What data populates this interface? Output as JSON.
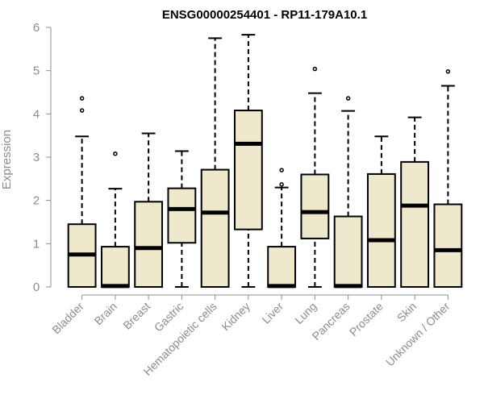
{
  "chart_data": {
    "type": "boxplot",
    "title": "ENSG00000254401 - RP11-179A10.1",
    "xlabel": "",
    "ylabel": "Expression",
    "ylim": [
      0,
      6
    ],
    "yticks": [
      "0",
      "1",
      "2",
      "3",
      "4",
      "5",
      "6"
    ],
    "colors": {
      "box_fill": "#EEE8CC",
      "stroke": "#000000",
      "axis_text": "#8c8c8c"
    },
    "categories": [
      "Bladder",
      "Brain",
      "Breast",
      "Gastric",
      "Hematopoietic cells",
      "Kidney",
      "Liver",
      "Lung",
      "Pancreas",
      "Prostate",
      "Skin",
      "Unknown / Other"
    ],
    "boxes": [
      {
        "category": "Bladder",
        "min": 0,
        "q1": 0,
        "median": 0.75,
        "q3": 1.45,
        "max": 3.48,
        "outliers": [
          4.08,
          4.36
        ]
      },
      {
        "category": "Brain",
        "min": 0,
        "q1": 0,
        "median": 0.02,
        "q3": 0.93,
        "max": 2.27,
        "outliers": [
          3.08
        ]
      },
      {
        "category": "Breast",
        "min": 0,
        "q1": 0,
        "median": 0.9,
        "q3": 1.97,
        "max": 3.55,
        "outliers": []
      },
      {
        "category": "Gastric",
        "min": 0,
        "q1": 1.02,
        "median": 1.8,
        "q3": 2.28,
        "max": 3.14,
        "outliers": []
      },
      {
        "category": "Hematopoietic cells",
        "min": 0,
        "q1": 0,
        "median": 1.72,
        "q3": 2.71,
        "max": 5.75,
        "outliers": []
      },
      {
        "category": "Kidney",
        "min": 0,
        "q1": 1.33,
        "median": 3.31,
        "q3": 4.08,
        "max": 5.83,
        "outliers": []
      },
      {
        "category": "Liver",
        "min": 0,
        "q1": 0,
        "median": 0.02,
        "q3": 0.93,
        "max": 2.3,
        "outliers": [
          2.37,
          2.7
        ]
      },
      {
        "category": "Lung",
        "min": 0,
        "q1": 1.12,
        "median": 1.73,
        "q3": 2.6,
        "max": 4.48,
        "outliers": [
          5.04
        ]
      },
      {
        "category": "Pancreas",
        "min": 0,
        "q1": 0,
        "median": 0.02,
        "q3": 1.63,
        "max": 4.07,
        "outliers": [
          4.36
        ]
      },
      {
        "category": "Prostate",
        "min": 0,
        "q1": 0,
        "median": 1.08,
        "q3": 2.61,
        "max": 3.48,
        "outliers": []
      },
      {
        "category": "Skin",
        "min": 0,
        "q1": 0,
        "median": 1.88,
        "q3": 2.89,
        "max": 3.92,
        "outliers": []
      },
      {
        "category": "Unknown / Other",
        "min": 0,
        "q1": 0,
        "median": 0.85,
        "q3": 1.91,
        "max": 4.65,
        "outliers": [
          4.98
        ]
      }
    ]
  }
}
